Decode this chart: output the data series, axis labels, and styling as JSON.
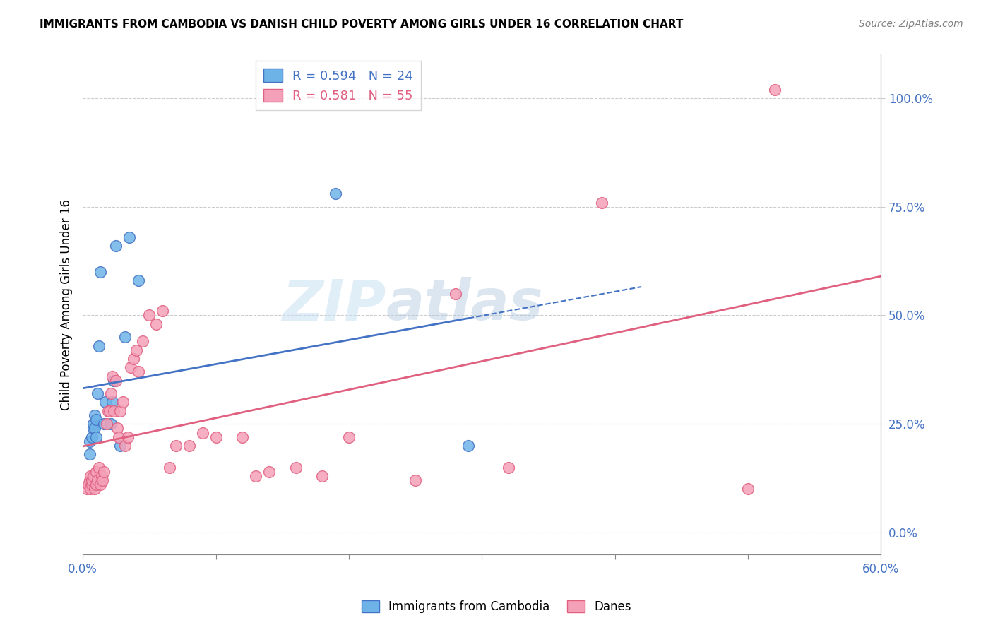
{
  "title": "IMMIGRANTS FROM CAMBODIA VS DANISH CHILD POVERTY AMONG GIRLS UNDER 16 CORRELATION CHART",
  "source": "Source: ZipAtlas.com",
  "xlabel": "",
  "ylabel": "Child Poverty Among Girls Under 16",
  "xmin": 0.0,
  "xmax": 0.6,
  "ymin": -0.05,
  "ymax": 1.1,
  "right_yticks": [
    0.0,
    0.25,
    0.5,
    0.75,
    1.0
  ],
  "right_yticklabels": [
    "0.0%",
    "25.0%",
    "50.0%",
    "75.0%",
    "100.0%"
  ],
  "xticks": [
    0.0,
    0.1,
    0.2,
    0.3,
    0.4,
    0.5,
    0.6
  ],
  "blue_R": 0.594,
  "blue_N": 24,
  "pink_R": 0.581,
  "pink_N": 55,
  "blue_color": "#6eb3e8",
  "pink_color": "#f4a0b8",
  "blue_line_color": "#4472c4",
  "pink_line_color": "#e06080",
  "watermark_zip": "ZIP",
  "watermark_atlas": "atlas",
  "blue_scatter_x": [
    0.005,
    0.005,
    0.007,
    0.008,
    0.008,
    0.009,
    0.009,
    0.01,
    0.01,
    0.011,
    0.012,
    0.013,
    0.016,
    0.017,
    0.021,
    0.022,
    0.023,
    0.025,
    0.028,
    0.032,
    0.035,
    0.042,
    0.29,
    0.19
  ],
  "blue_scatter_y": [
    0.18,
    0.21,
    0.22,
    0.24,
    0.25,
    0.24,
    0.27,
    0.22,
    0.26,
    0.32,
    0.43,
    0.6,
    0.25,
    0.3,
    0.25,
    0.3,
    0.35,
    0.66,
    0.2,
    0.45,
    0.68,
    0.58,
    0.2,
    0.78
  ],
  "pink_scatter_x": [
    0.003,
    0.004,
    0.005,
    0.006,
    0.006,
    0.007,
    0.007,
    0.008,
    0.009,
    0.01,
    0.01,
    0.011,
    0.012,
    0.013,
    0.014,
    0.015,
    0.016,
    0.018,
    0.019,
    0.02,
    0.021,
    0.022,
    0.023,
    0.025,
    0.026,
    0.027,
    0.028,
    0.03,
    0.032,
    0.034,
    0.036,
    0.038,
    0.04,
    0.042,
    0.045,
    0.05,
    0.055,
    0.06,
    0.065,
    0.07,
    0.08,
    0.09,
    0.1,
    0.12,
    0.13,
    0.14,
    0.16,
    0.18,
    0.2,
    0.25,
    0.28,
    0.32,
    0.39,
    0.5,
    0.52
  ],
  "pink_scatter_y": [
    0.1,
    0.11,
    0.12,
    0.1,
    0.13,
    0.11,
    0.12,
    0.13,
    0.1,
    0.11,
    0.14,
    0.12,
    0.15,
    0.11,
    0.13,
    0.12,
    0.14,
    0.25,
    0.28,
    0.28,
    0.32,
    0.36,
    0.28,
    0.35,
    0.24,
    0.22,
    0.28,
    0.3,
    0.2,
    0.22,
    0.38,
    0.4,
    0.42,
    0.37,
    0.44,
    0.5,
    0.48,
    0.51,
    0.15,
    0.2,
    0.2,
    0.23,
    0.22,
    0.22,
    0.13,
    0.14,
    0.15,
    0.13,
    0.22,
    0.12,
    0.55,
    0.15,
    0.76,
    0.1,
    1.02
  ]
}
